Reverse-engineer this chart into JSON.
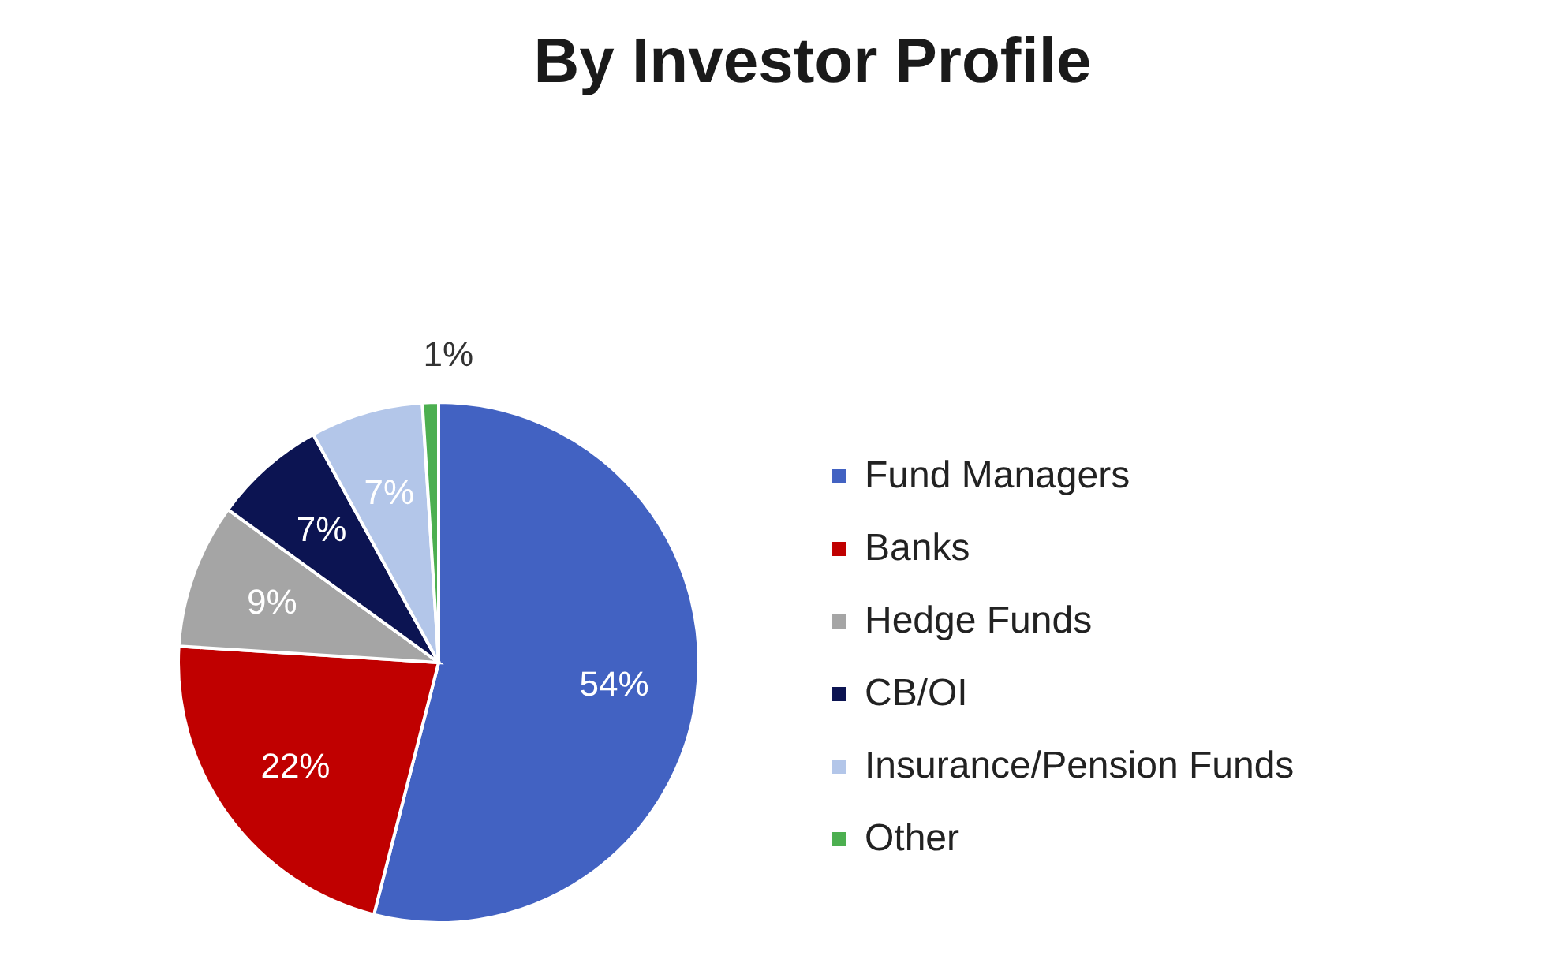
{
  "chart_data": {
    "type": "pie",
    "title": "By Investor Profile",
    "categories": [
      "Fund Managers",
      "Banks",
      "Hedge Funds",
      "CB/OI",
      "Insurance/Pension Funds",
      "Other"
    ],
    "values": [
      54,
      22,
      9,
      7,
      7,
      1
    ],
    "colors": [
      "#4262c2",
      "#c00000",
      "#a5a5a5",
      "#0c1452",
      "#b3c6e9",
      "#4caf50"
    ],
    "value_labels": [
      "54%",
      "22%",
      "9%",
      "7%",
      "7%",
      "1%"
    ],
    "legend": "right"
  }
}
